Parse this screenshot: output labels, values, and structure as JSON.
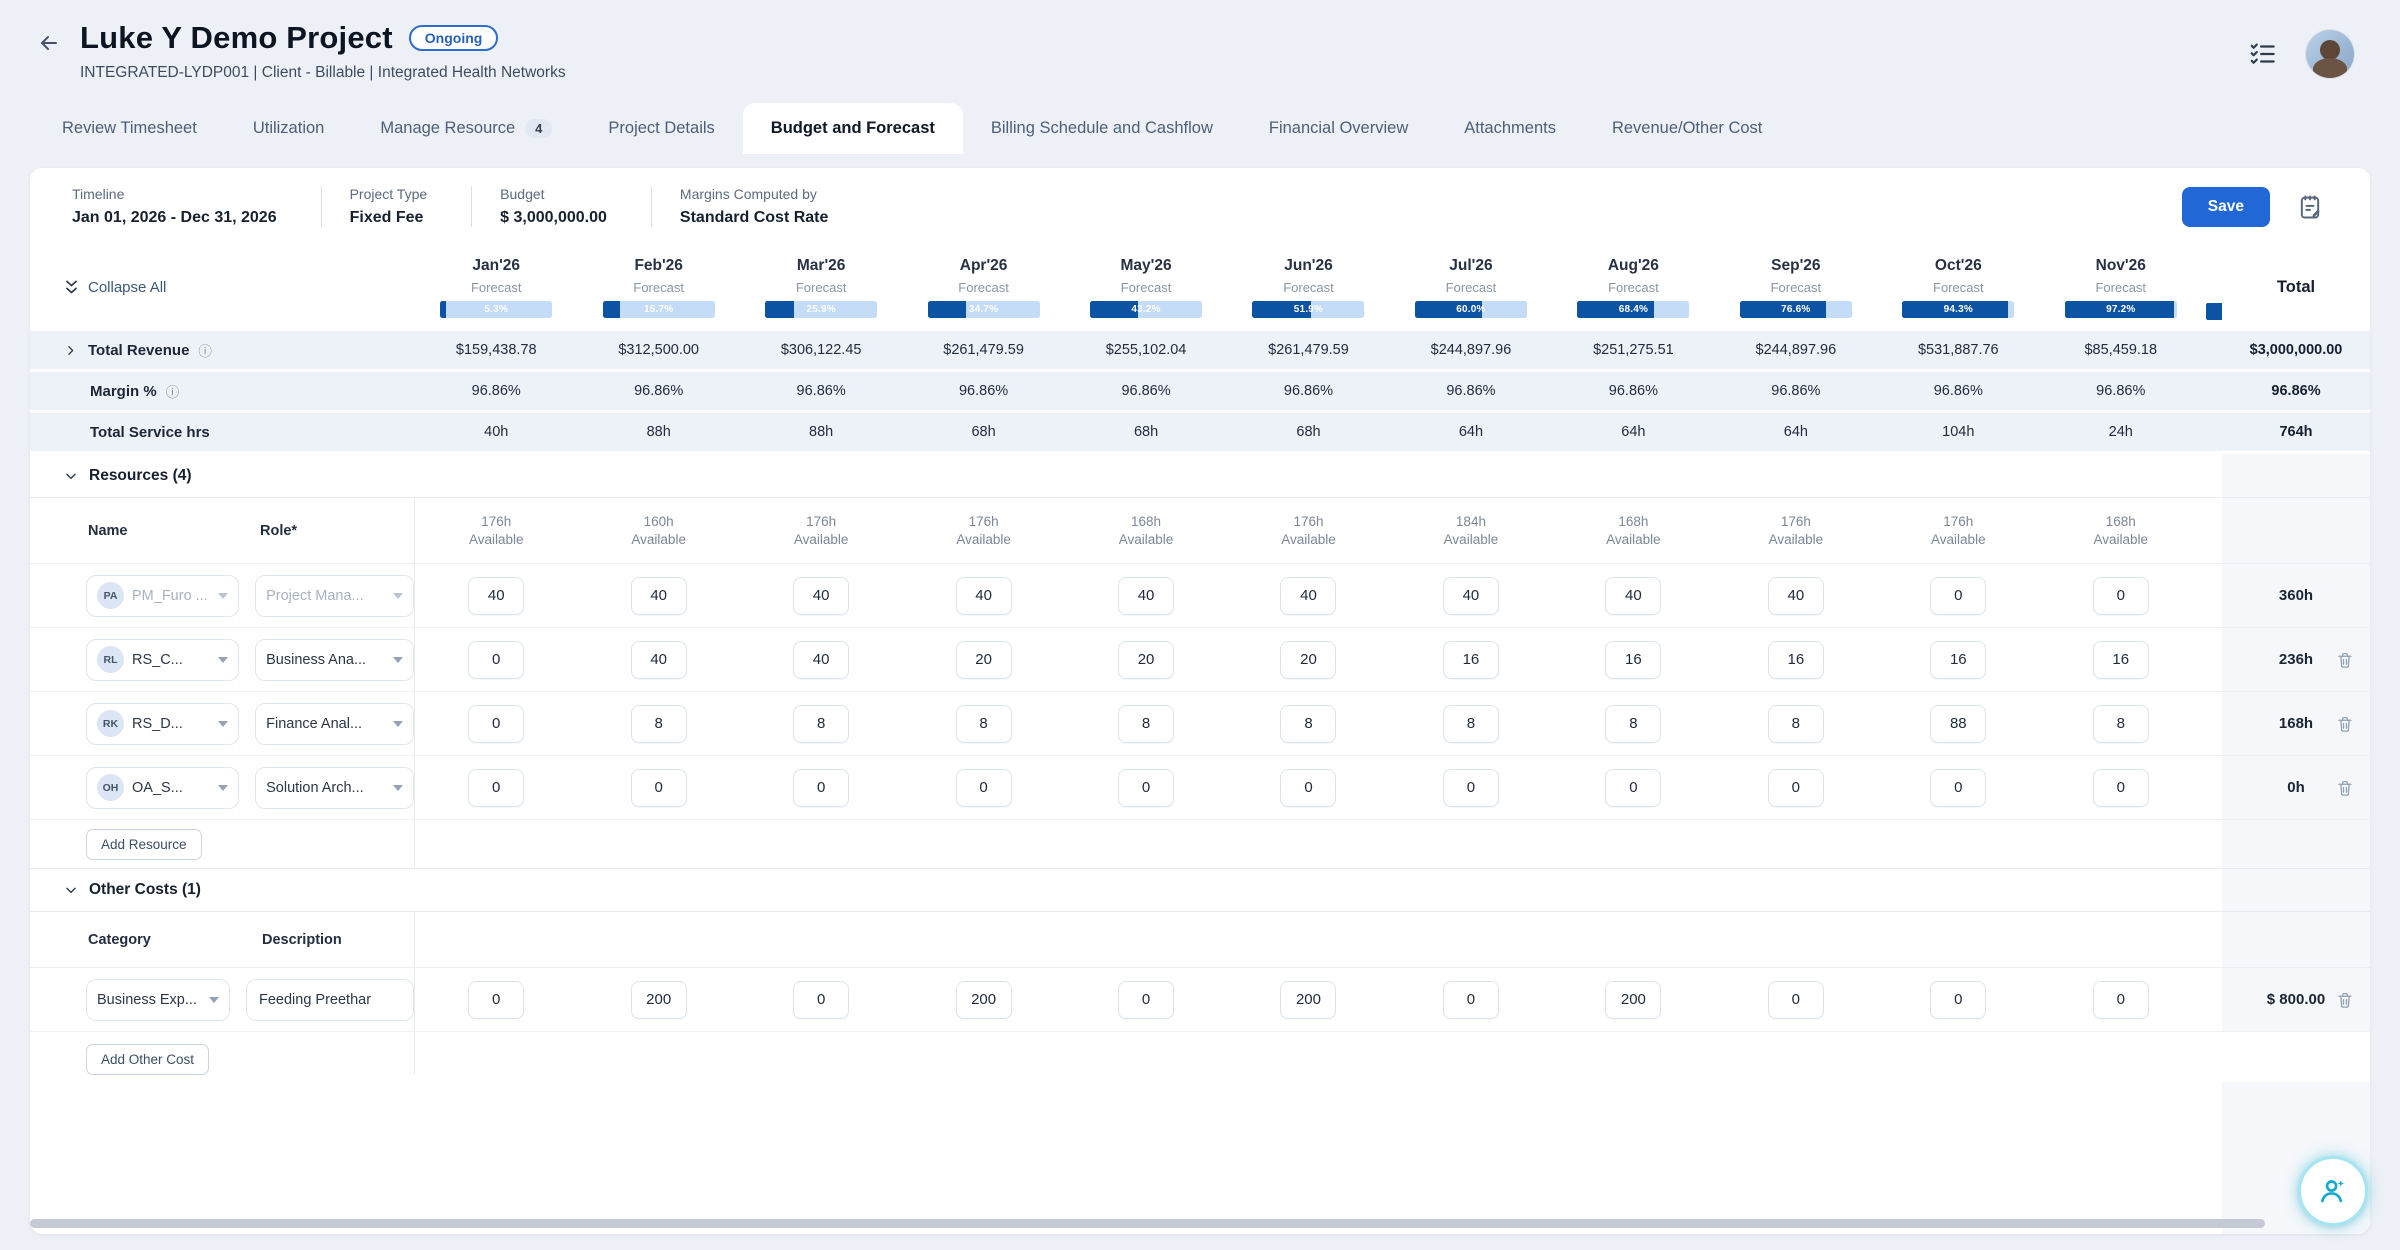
{
  "header": {
    "title": "Luke Y Demo Project",
    "status_badge": "Ongoing",
    "subtitle": "INTEGRATED-LYDP001  |  Client - Billable  |  Integrated Health Networks"
  },
  "tabs": [
    {
      "label": "Review Timesheet",
      "active": false
    },
    {
      "label": "Utilization",
      "active": false
    },
    {
      "label": "Manage Resource",
      "badge": "4",
      "active": false
    },
    {
      "label": "Project Details",
      "active": false
    },
    {
      "label": "Budget and Forecast",
      "active": true
    },
    {
      "label": "Billing Schedule and Cashflow",
      "active": false
    },
    {
      "label": "Financial Overview",
      "active": false
    },
    {
      "label": "Attachments",
      "active": false
    },
    {
      "label": "Revenue/Other Cost",
      "active": false
    }
  ],
  "info_bar": {
    "fields": [
      {
        "label": "Timeline",
        "value": "Jan 01, 2026 - Dec 31, 2026"
      },
      {
        "label": "Project Type",
        "value": "Fixed Fee"
      },
      {
        "label": "Budget",
        "value": "$ 3,000,000.00"
      },
      {
        "label": "Margins Computed by",
        "value": "Standard Cost Rate"
      }
    ],
    "save_label": "Save"
  },
  "table": {
    "collapse_all_label": "Collapse All",
    "forecast_label": "Forecast",
    "total_header": "Total",
    "months": [
      {
        "label": "Jan'26",
        "pct": 5.3,
        "pct_label": "5.3%",
        "available": "176h"
      },
      {
        "label": "Feb'26",
        "pct": 15.7,
        "pct_label": "15.7%",
        "available": "160h"
      },
      {
        "label": "Mar'26",
        "pct": 25.9,
        "pct_label": "25.9%",
        "available": "176h"
      },
      {
        "label": "Apr'26",
        "pct": 34.7,
        "pct_label": "34.7%",
        "available": "176h"
      },
      {
        "label": "May'26",
        "pct": 43.2,
        "pct_label": "43.2%",
        "available": "168h"
      },
      {
        "label": "Jun'26",
        "pct": 51.9,
        "pct_label": "51.9%",
        "available": "176h"
      },
      {
        "label": "Jul'26",
        "pct": 60.0,
        "pct_label": "60.0%",
        "available": "184h"
      },
      {
        "label": "Aug'26",
        "pct": 68.4,
        "pct_label": "68.4%",
        "available": "168h"
      },
      {
        "label": "Sep'26",
        "pct": 76.6,
        "pct_label": "76.6%",
        "available": "176h"
      },
      {
        "label": "Oct'26",
        "pct": 94.3,
        "pct_label": "94.3%",
        "available": "176h"
      },
      {
        "label": "Nov'26",
        "pct": 97.2,
        "pct_label": "97.2%",
        "available": "168h"
      }
    ],
    "summary_rows": {
      "total_revenue": {
        "label": "Total Revenue",
        "values": [
          "$159,438.78",
          "$312,500.00",
          "$306,122.45",
          "$261,479.59",
          "$255,102.04",
          "$261,479.59",
          "$244,897.96",
          "$251,275.51",
          "$244,897.96",
          "$531,887.76",
          "$85,459.18"
        ],
        "total": "$3,000,000.00"
      },
      "margin": {
        "label": "Margin %",
        "values": [
          "96.86%",
          "96.86%",
          "96.86%",
          "96.86%",
          "96.86%",
          "96.86%",
          "96.86%",
          "96.86%",
          "96.86%",
          "96.86%",
          "96.86%"
        ],
        "total": "96.86%"
      },
      "service_hrs": {
        "label": "Total Service hrs",
        "values": [
          "40h",
          "88h",
          "88h",
          "68h",
          "68h",
          "68h",
          "64h",
          "64h",
          "64h",
          "104h",
          "24h"
        ],
        "total": "764h"
      }
    },
    "resources": {
      "section_label": "Resources (4)",
      "name_header": "Name",
      "role_header": "Role*",
      "available_label": "Available",
      "add_button": "Add Resource",
      "rows": [
        {
          "avatar": "PA",
          "name": "PM_Furo ...",
          "role": "Project Mana...",
          "hours": [
            40,
            40,
            40,
            40,
            40,
            40,
            40,
            40,
            40,
            0,
            0
          ],
          "total": "360h",
          "deletable": false,
          "placeholder": true
        },
        {
          "avatar": "RL",
          "name": "RS_C...",
          "role": "Business Ana...",
          "hours": [
            0,
            40,
            40,
            20,
            20,
            20,
            16,
            16,
            16,
            16,
            16
          ],
          "total": "236h",
          "deletable": true,
          "placeholder": false
        },
        {
          "avatar": "RK",
          "name": "RS_D...",
          "role": "Finance Anal...",
          "hours": [
            0,
            8,
            8,
            8,
            8,
            8,
            8,
            8,
            8,
            88,
            8
          ],
          "total": "168h",
          "deletable": true,
          "placeholder": false
        },
        {
          "avatar": "OH",
          "name": "OA_S...",
          "role": "Solution Arch...",
          "hours": [
            0,
            0,
            0,
            0,
            0,
            0,
            0,
            0,
            0,
            0,
            0
          ],
          "total": "0h",
          "deletable": true,
          "placeholder": false
        }
      ]
    },
    "other_costs": {
      "section_label": "Other Costs (1)",
      "category_header": "Category",
      "description_header": "Description",
      "add_button": "Add Other Cost",
      "rows": [
        {
          "category": "Business Exp...",
          "description": "Feeding Preethar",
          "values": [
            0,
            200,
            0,
            200,
            0,
            200,
            0,
            200,
            0,
            0,
            0
          ],
          "total": "$ 800.00",
          "deletable": true
        }
      ]
    }
  },
  "colors": {
    "accent_blue": "#2168d6",
    "bar_fill": "#0d53a4",
    "bar_track": "#c4dcf8",
    "badge_blue": "#2e6ccd",
    "summary_row_bg": "#edf1f8",
    "fab_cyan": "#14aacf"
  }
}
